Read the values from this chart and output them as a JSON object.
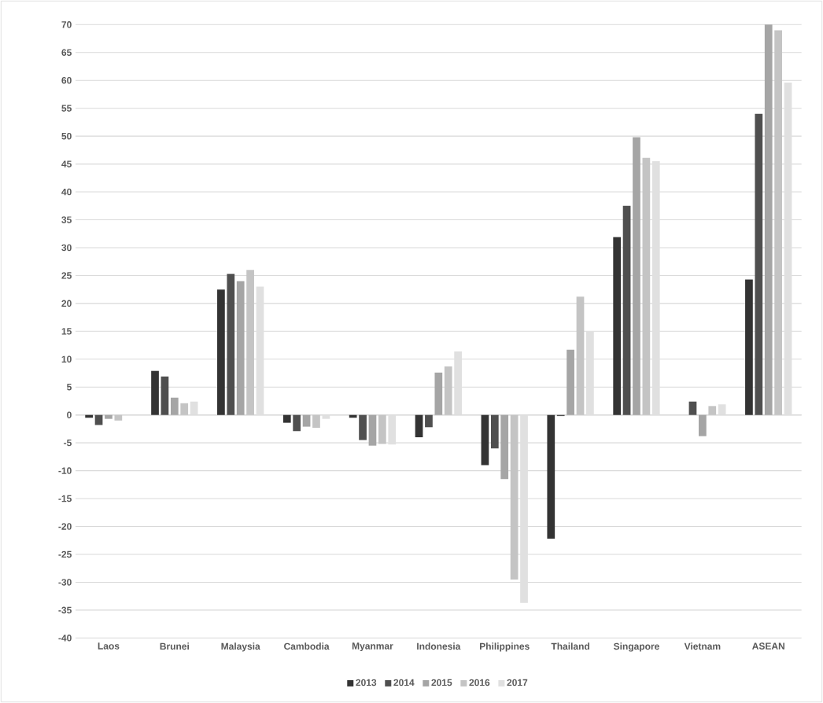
{
  "chart_data": {
    "type": "bar",
    "categories": [
      "Laos",
      "Brunei",
      "Malaysia",
      "Cambodia",
      "Myanmar",
      "Indonesia",
      "Philippines",
      "Thailand",
      "Singapore",
      "Vietnam",
      "ASEAN"
    ],
    "series": [
      {
        "name": "2013",
        "color": "#333333",
        "values": [
          -0.5,
          7.9,
          22.5,
          -1.4,
          -0.5,
          -4.0,
          -9.0,
          -22.2,
          31.9,
          null,
          24.3
        ]
      },
      {
        "name": "2014",
        "color": "#4f4f4f",
        "values": [
          -1.8,
          6.9,
          25.3,
          -2.9,
          -4.5,
          -2.2,
          -6.0,
          -0.2,
          37.5,
          2.4,
          54.0
        ]
      },
      {
        "name": "2015",
        "color": "#a5a5a5",
        "values": [
          -0.7,
          3.1,
          24.0,
          -2.1,
          -5.5,
          7.6,
          -11.5,
          11.7,
          49.8,
          -3.8,
          70.0
        ]
      },
      {
        "name": "2016",
        "color": "#c4c4c4",
        "values": [
          -1.0,
          2.1,
          26.0,
          -2.3,
          -5.2,
          8.7,
          -29.5,
          21.2,
          46.1,
          1.6,
          69.0
        ]
      },
      {
        "name": "2017",
        "color": "#e0e0e0",
        "values": [
          null,
          2.4,
          23.0,
          -0.7,
          -5.3,
          11.4,
          -33.7,
          15.0,
          45.5,
          1.9,
          59.6
        ]
      }
    ],
    "ylim": [
      -40,
      70
    ],
    "yticks": [
      -40,
      -35,
      -30,
      -25,
      -20,
      -15,
      -10,
      -5,
      0,
      5,
      10,
      15,
      20,
      25,
      30,
      35,
      40,
      45,
      50,
      55,
      60,
      65,
      70
    ],
    "grid": "y",
    "legend": "bottom"
  }
}
